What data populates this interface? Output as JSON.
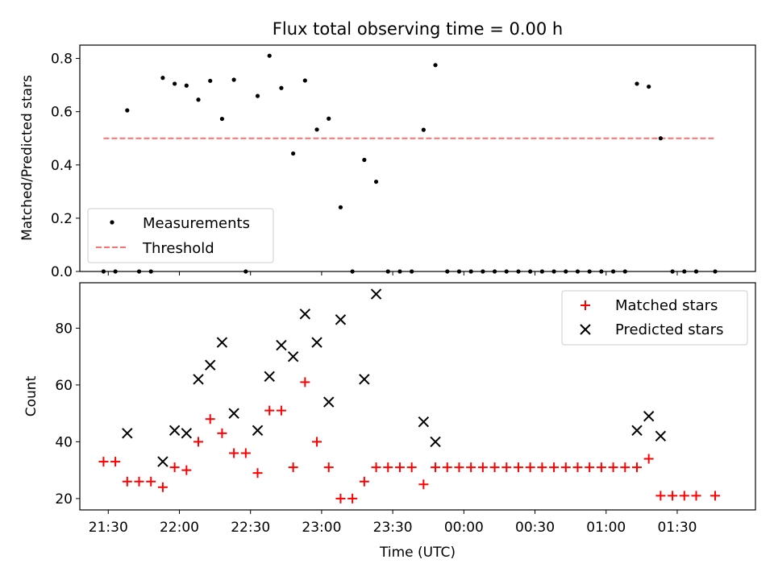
{
  "chart_data": [
    {
      "type": "scatter",
      "title": "Flux total observing time = 0.00 h",
      "xlabel": "",
      "ylabel": "Matched/Predicted stars",
      "ylim": [
        0,
        0.85
      ],
      "yticks": [
        0.0,
        0.2,
        0.4,
        0.6,
        0.8
      ],
      "legend": "lower-left",
      "series": [
        {
          "name": "Measurements",
          "color": "#000000",
          "marker": "dot",
          "points": [
            [
              "21:28",
              0.0
            ],
            [
              "21:33",
              0.0
            ],
            [
              "21:38",
              0.605
            ],
            [
              "21:43",
              0.0
            ],
            [
              "21:48",
              0.0
            ],
            [
              "21:53",
              0.727
            ],
            [
              "21:58",
              0.705
            ],
            [
              "22:03",
              0.698
            ],
            [
              "22:08",
              0.645
            ],
            [
              "22:13",
              0.716
            ],
            [
              "22:18",
              0.573
            ],
            [
              "22:23",
              0.72
            ],
            [
              "22:28",
              0.0
            ],
            [
              "22:33",
              0.659
            ],
            [
              "22:38",
              0.81
            ],
            [
              "22:43",
              0.689
            ],
            [
              "22:48",
              0.443
            ],
            [
              "22:53",
              0.717
            ],
            [
              "22:58",
              0.533
            ],
            [
              "23:03",
              0.574
            ],
            [
              "23:08",
              0.241
            ],
            [
              "23:13",
              0.0
            ],
            [
              "23:18",
              0.419
            ],
            [
              "23:23",
              0.337
            ],
            [
              "23:28",
              0.0
            ],
            [
              "23:33",
              0.0
            ],
            [
              "23:38",
              0.0
            ],
            [
              "23:43",
              0.532
            ],
            [
              "23:48",
              0.775
            ],
            [
              "23:53",
              0.0
            ],
            [
              "23:58",
              0.0
            ],
            [
              "00:03",
              0.0
            ],
            [
              "00:08",
              0.0
            ],
            [
              "00:13",
              0.0
            ],
            [
              "00:18",
              0.0
            ],
            [
              "00:23",
              0.0
            ],
            [
              "00:28",
              0.0
            ],
            [
              "00:33",
              0.0
            ],
            [
              "00:38",
              0.0
            ],
            [
              "00:43",
              0.0
            ],
            [
              "00:48",
              0.0
            ],
            [
              "00:53",
              0.0
            ],
            [
              "00:58",
              0.0
            ],
            [
              "01:03",
              0.0
            ],
            [
              "01:08",
              0.0
            ],
            [
              "01:13",
              0.705
            ],
            [
              "01:18",
              0.694
            ],
            [
              "01:23",
              0.5
            ],
            [
              "01:28",
              0.0
            ],
            [
              "01:33",
              0.0
            ],
            [
              "01:38",
              0.0
            ],
            [
              "01:46",
              0.0
            ]
          ]
        },
        {
          "name": "Threshold",
          "color": "#ff7070",
          "marker": "dashed-line",
          "points": [
            [
              "21:28",
              0.5
            ],
            [
              "01:46",
              0.5
            ]
          ]
        }
      ]
    },
    {
      "type": "scatter",
      "title": "",
      "xlabel": "Time (UTC)",
      "ylabel": "Count",
      "ylim": [
        16,
        96
      ],
      "yticks": [
        20,
        40,
        60,
        80
      ],
      "xticks": [
        "21:30",
        "22:00",
        "22:30",
        "23:00",
        "23:30",
        "00:00",
        "00:30",
        "01:00",
        "01:30"
      ],
      "x_range": [
        "21:18",
        "02:03"
      ],
      "legend": "upper-right",
      "series": [
        {
          "name": "Matched stars",
          "color": "#ff0000",
          "marker": "plus",
          "points": [
            [
              "21:28",
              33
            ],
            [
              "21:33",
              33
            ],
            [
              "21:38",
              26
            ],
            [
              "21:43",
              26
            ],
            [
              "21:48",
              26
            ],
            [
              "21:53",
              24
            ],
            [
              "21:58",
              31
            ],
            [
              "22:03",
              30
            ],
            [
              "22:08",
              40
            ],
            [
              "22:13",
              48
            ],
            [
              "22:18",
              43
            ],
            [
              "22:23",
              36
            ],
            [
              "22:28",
              36
            ],
            [
              "22:33",
              29
            ],
            [
              "22:38",
              51
            ],
            [
              "22:43",
              51
            ],
            [
              "22:48",
              31
            ],
            [
              "22:53",
              61
            ],
            [
              "22:58",
              40
            ],
            [
              "23:03",
              31
            ],
            [
              "23:08",
              20
            ],
            [
              "23:13",
              20
            ],
            [
              "23:18",
              26
            ],
            [
              "23:23",
              31
            ],
            [
              "23:28",
              31
            ],
            [
              "23:33",
              31
            ],
            [
              "23:38",
              31
            ],
            [
              "23:43",
              25
            ],
            [
              "23:48",
              31
            ],
            [
              "23:53",
              31
            ],
            [
              "23:58",
              31
            ],
            [
              "00:03",
              31
            ],
            [
              "00:08",
              31
            ],
            [
              "00:13",
              31
            ],
            [
              "00:18",
              31
            ],
            [
              "00:23",
              31
            ],
            [
              "00:28",
              31
            ],
            [
              "00:33",
              31
            ],
            [
              "00:38",
              31
            ],
            [
              "00:43",
              31
            ],
            [
              "00:48",
              31
            ],
            [
              "00:53",
              31
            ],
            [
              "00:58",
              31
            ],
            [
              "01:03",
              31
            ],
            [
              "01:08",
              31
            ],
            [
              "01:13",
              31
            ],
            [
              "01:18",
              34
            ],
            [
              "01:23",
              21
            ],
            [
              "01:28",
              21
            ],
            [
              "01:33",
              21
            ],
            [
              "01:38",
              21
            ],
            [
              "01:46",
              21
            ]
          ]
        },
        {
          "name": "Predicted stars",
          "color": "#000000",
          "marker": "x",
          "points": [
            [
              "21:38",
              43
            ],
            [
              "21:53",
              33
            ],
            [
              "21:58",
              44
            ],
            [
              "22:03",
              43
            ],
            [
              "22:08",
              62
            ],
            [
              "22:13",
              67
            ],
            [
              "22:18",
              75
            ],
            [
              "22:23",
              50
            ],
            [
              "22:33",
              44
            ],
            [
              "22:38",
              63
            ],
            [
              "22:43",
              74
            ],
            [
              "22:48",
              70
            ],
            [
              "22:53",
              85
            ],
            [
              "22:58",
              75
            ],
            [
              "23:03",
              54
            ],
            [
              "23:08",
              83
            ],
            [
              "23:18",
              62
            ],
            [
              "23:23",
              92
            ],
            [
              "23:43",
              47
            ],
            [
              "23:48",
              40
            ],
            [
              "01:13",
              44
            ],
            [
              "01:18",
              49
            ],
            [
              "01:23",
              42
            ]
          ]
        }
      ]
    }
  ]
}
